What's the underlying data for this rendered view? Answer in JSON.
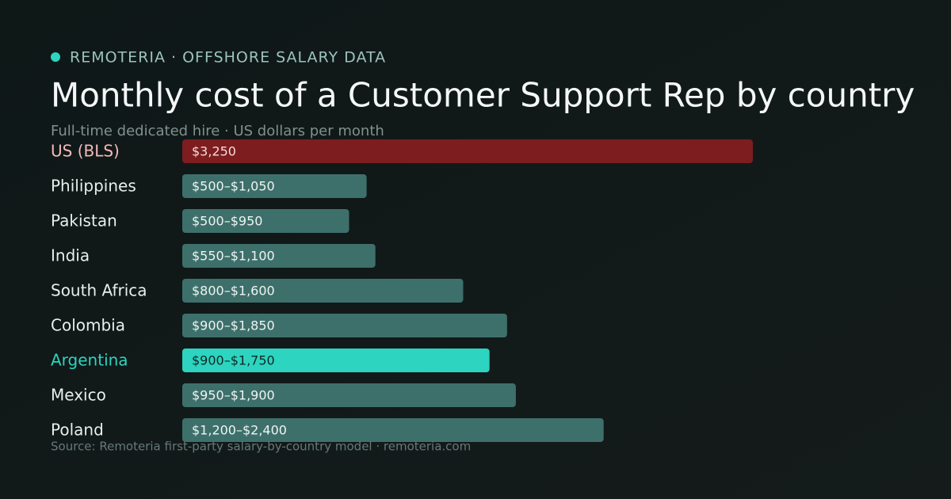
{
  "chart_data": {
    "type": "bar",
    "orientation": "horizontal",
    "kicker": "REMOTERIA · OFFSHORE SALARY DATA",
    "title": "Monthly cost of a Customer Support Rep by country",
    "subtitle": "Full-time dedicated hire · US dollars per month",
    "source": "Source: Remoteria first-party salary-by-country model · remoteria.com",
    "categories": [
      "US (BLS)",
      "Philippines",
      "Pakistan",
      "India",
      "South Africa",
      "Colombia",
      "Argentina",
      "Mexico",
      "Poland"
    ],
    "values": [
      3250,
      1050,
      950,
      1100,
      1600,
      1850,
      1750,
      1900,
      2400
    ],
    "value_labels": [
      "$3,250",
      "$500–$1,050",
      "$500–$950",
      "$550–$1,100",
      "$800–$1,600",
      "$900–$1,850",
      "$900–$1,750",
      "$950–$1,900",
      "$1,200–$2,400"
    ],
    "colors": [
      "#7d1d1f",
      "#3e706b",
      "#3e706b",
      "#3e706b",
      "#3e706b",
      "#3e706b",
      "#2dd4bf",
      "#3e706b",
      "#3e706b"
    ],
    "label_colors": [
      "#f6b9b9",
      "#e8eeed",
      "#e8eeed",
      "#e8eeed",
      "#e8eeed",
      "#e8eeed",
      "#2dd4bf",
      "#e8eeed",
      "#e8eeed"
    ],
    "value_label_colors": [
      "#f3dada",
      "#eef4f3",
      "#eef4f3",
      "#eef4f3",
      "#eef4f3",
      "#eef4f3",
      "#0f2a27",
      "#eef4f3",
      "#eef4f3"
    ],
    "accent_color": "#2dd4bf",
    "xlim": [
      0,
      3250
    ]
  }
}
